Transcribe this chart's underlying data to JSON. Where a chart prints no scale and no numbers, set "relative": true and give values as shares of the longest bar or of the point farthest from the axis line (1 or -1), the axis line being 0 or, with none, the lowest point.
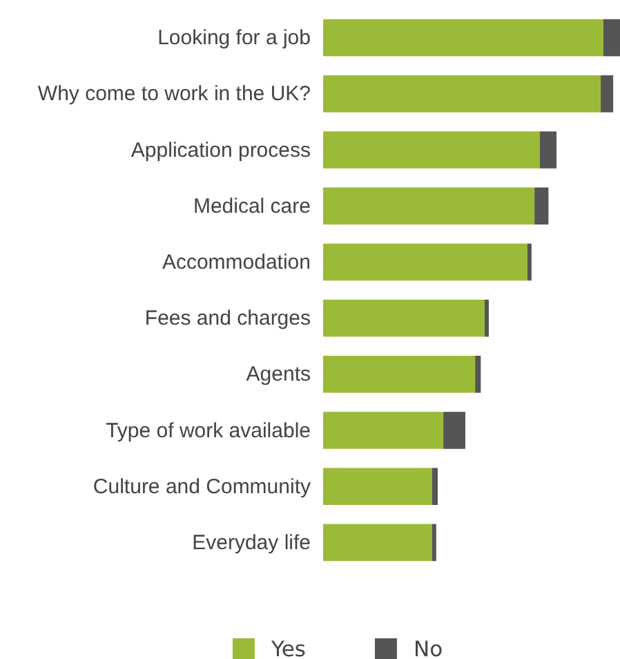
{
  "chart_data": {
    "type": "bar",
    "orientation": "horizontal",
    "stacked": true,
    "relative": true,
    "legend": "bottom",
    "grid": false,
    "categories": [
      "Looking for a job",
      "Why come to work in the UK?",
      "Application process",
      "Medical care",
      "Accommodation",
      "Fees and charges",
      "Agents",
      "Type of work available",
      "Culture and Community",
      "Everyday life"
    ],
    "series": [
      {
        "name": "Yes",
        "color": "#9bbb38",
        "values": [
          0.944,
          0.935,
          0.73,
          0.712,
          0.688,
          0.544,
          0.512,
          0.405,
          0.367,
          0.367
        ]
      },
      {
        "name": "No",
        "color": "#555555",
        "values": [
          0.056,
          0.042,
          0.056,
          0.047,
          0.014,
          0.014,
          0.019,
          0.074,
          0.019,
          0.014
        ]
      }
    ]
  }
}
